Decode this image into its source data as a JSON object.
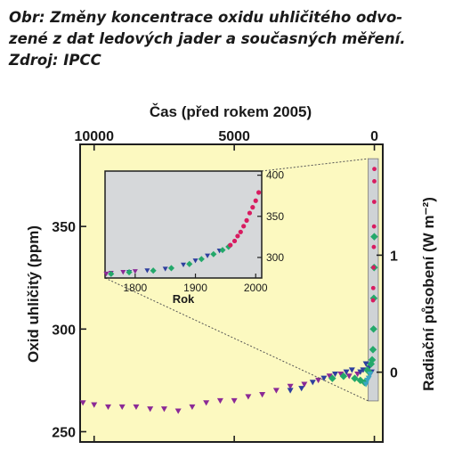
{
  "caption": {
    "line1": "Obr: Změny koncentrace oxidu uhličitého odvo-",
    "line2": "zené z dat ledových jader a současných měření.",
    "line3": "Zdroj: IPCC"
  },
  "chart_data": {
    "type": "scatter",
    "top_axis": {
      "label": "Čas (před rokem 2005)",
      "ticks": [
        "10000",
        "5000",
        "0"
      ],
      "tick_values": [
        10000,
        5000,
        0
      ],
      "range": [
        10500,
        -300
      ]
    },
    "left_axis": {
      "label": "Oxid uhličitý (ppm)",
      "ticks": [
        "250",
        "300",
        "350"
      ],
      "tick_values": [
        250,
        300,
        350
      ],
      "range": [
        245,
        390
      ]
    },
    "right_axis": {
      "label": "Radiační působení (W m⁻²)",
      "ticks": [
        "0",
        "1"
      ],
      "tick_values": [
        279,
        336
      ]
    },
    "main_series": [
      {
        "name": "",
        "color": "#8b2a96",
        "points": [
          [
            10400,
            264
          ],
          [
            10000,
            263
          ],
          [
            9500,
            262
          ],
          [
            9000,
            262
          ],
          [
            8500,
            262
          ],
          [
            8000,
            261
          ],
          [
            7500,
            261
          ],
          [
            7000,
            260
          ],
          [
            6500,
            262
          ],
          [
            6000,
            264
          ],
          [
            5500,
            265
          ],
          [
            5000,
            265
          ],
          [
            4500,
            267
          ],
          [
            4000,
            268
          ],
          [
            3500,
            270
          ],
          [
            3000,
            272
          ],
          [
            2500,
            273
          ],
          [
            2000,
            275
          ],
          [
            1600,
            277
          ],
          [
            1200,
            278
          ],
          [
            900,
            277
          ],
          [
            600,
            278
          ]
        ]
      },
      {
        "name": "",
        "color": "#2e3f9e",
        "points": [
          [
            3000,
            270
          ],
          [
            2600,
            271
          ],
          [
            2200,
            274
          ],
          [
            1800,
            276
          ],
          [
            1400,
            278
          ],
          [
            1000,
            279
          ],
          [
            800,
            280
          ],
          [
            500,
            279
          ],
          [
            400,
            280
          ],
          [
            300,
            283
          ],
          [
            200,
            281
          ],
          [
            100,
            279
          ]
        ]
      },
      {
        "name": "",
        "color": "#23a86a",
        "points": [
          [
            1500,
            276
          ],
          [
            1100,
            277
          ],
          [
            700,
            276
          ],
          [
            500,
            275
          ],
          [
            350,
            274
          ],
          [
            250,
            280
          ],
          [
            180,
            279
          ],
          [
            120,
            283
          ],
          [
            80,
            285
          ],
          [
            50,
            290
          ],
          [
            30,
            300
          ],
          [
            20,
            315
          ],
          [
            10,
            330
          ],
          [
            5,
            345
          ]
        ]
      },
      {
        "name": "",
        "color": "#3aa6c4",
        "points": [
          [
            300,
            273
          ],
          [
            250,
            275
          ],
          [
            200,
            276
          ],
          [
            150,
            278
          ]
        ]
      },
      {
        "name": "",
        "color": "#d81b60",
        "points": [
          [
            48,
            314
          ],
          [
            40,
            320
          ],
          [
            30,
            330
          ],
          [
            20,
            340
          ],
          [
            12,
            350
          ],
          [
            6,
            362
          ],
          [
            2,
            372
          ],
          [
            0,
            378
          ]
        ]
      }
    ],
    "inset": {
      "x_label": "Rok",
      "x_ticks": [
        "1800",
        "1900",
        "2000"
      ],
      "x_tick_values": [
        1800,
        1900,
        2000
      ],
      "x_range": [
        1750,
        2010
      ],
      "y_ticks": [
        "300",
        "350",
        "400"
      ],
      "y_tick_values": [
        300,
        350,
        400
      ],
      "y_range": [
        275,
        405
      ],
      "series": [
        {
          "name": "",
          "color": "#8b2a96",
          "points": [
            [
              1752,
              280
            ],
            [
              1760,
              281
            ],
            [
              1780,
              282
            ],
            [
              1800,
              283
            ]
          ]
        },
        {
          "name": "",
          "color": "#2e3f9e",
          "points": [
            [
              1790,
              282
            ],
            [
              1820,
              284
            ],
            [
              1850,
              286
            ],
            [
              1880,
              291
            ],
            [
              1900,
              296
            ],
            [
              1920,
              302
            ],
            [
              1940,
              308
            ]
          ]
        },
        {
          "name": "",
          "color": "#23a86a",
          "points": [
            [
              1760,
              280
            ],
            [
              1790,
              282
            ],
            [
              1830,
              284
            ],
            [
              1860,
              287
            ],
            [
              1890,
              292
            ],
            [
              1910,
              298
            ],
            [
              1930,
              304
            ],
            [
              1945,
              309
            ],
            [
              1955,
              313
            ]
          ]
        },
        {
          "name": "",
          "color": "#d81b60",
          "points": [
            [
              1958,
              315
            ],
            [
              1965,
              320
            ],
            [
              1970,
              326
            ],
            [
              1975,
              331
            ],
            [
              1980,
              338
            ],
            [
              1985,
              345
            ],
            [
              1990,
              354
            ],
            [
              1995,
              361
            ],
            [
              2000,
              369
            ],
            [
              2005,
              379
            ]
          ]
        }
      ]
    }
  }
}
